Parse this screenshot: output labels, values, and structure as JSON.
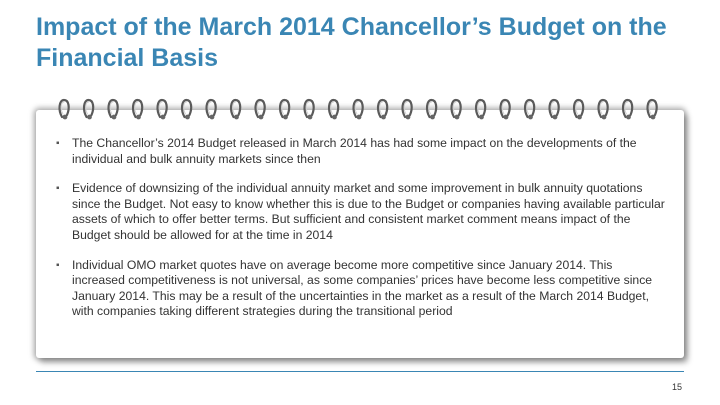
{
  "slide": {
    "title": "Impact of the March 2014 Chancellor’s Budget on the Financial Basis",
    "page_number": "15",
    "accent_color": "#3a86b4",
    "decoration": "spiral-notepad",
    "bullets": [
      "The Chancellor’s 2014 Budget released in March 2014 has had some impact on the developments of the individual and bulk annuity markets since then",
      "Evidence of downsizing of the individual annuity market and some improvement in bulk annuity quotations since the Budget. Not easy to know whether this is due to the Budget or companies having available particular assets of which to offer better terms. But sufficient and consistent market comment means impact of the Budget should be allowed for at the time in 2014",
      "Individual OMO market quotes have on average become more competitive since January 2014. This increased competitiveness is not universal, as some companies’ prices have become less competitive since January 2014. This may be a result of the uncertainties in the market as a result of the March 2014 Budget, with companies taking different strategies during the transitional period"
    ]
  }
}
